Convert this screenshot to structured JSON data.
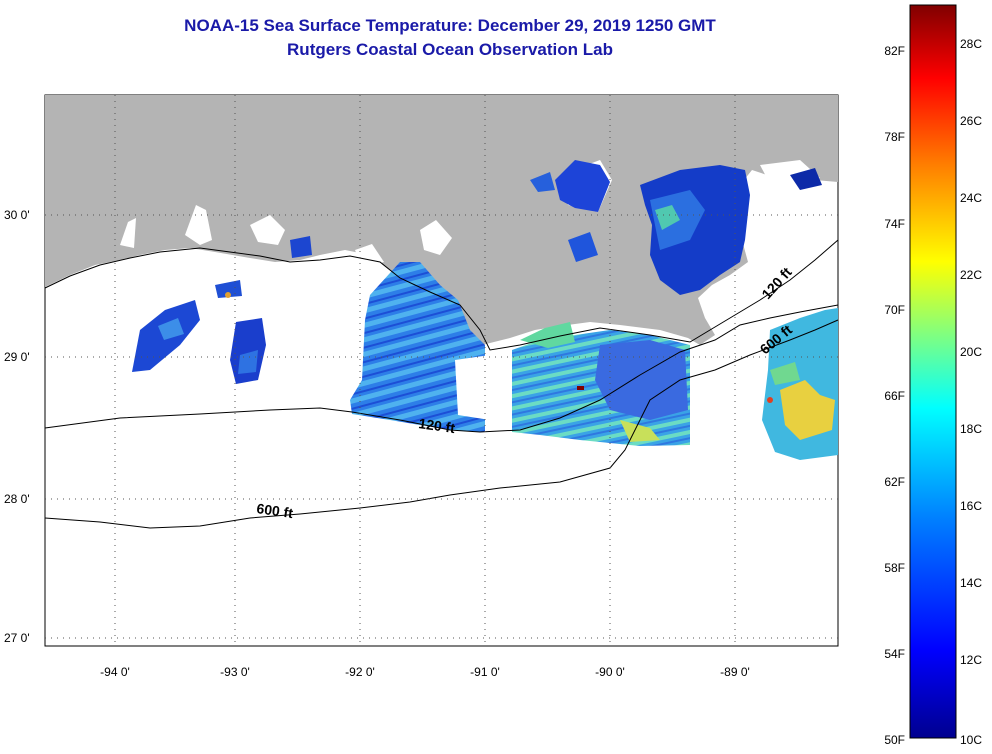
{
  "title": "NOAA-15 Sea Surface Temperature:  December 29, 2019 1250 GMT",
  "subtitle": "Rutgers Coastal Ocean Observation Lab",
  "map": {
    "lat_labels": [
      "30 0'",
      "29 0'",
      "28 0'",
      "27 0'"
    ],
    "lon_labels": [
      "-94 0'",
      "-93 0'",
      "-92 0'",
      "-91 0'",
      "-90 0'",
      "-89 0'"
    ],
    "isobath_labels": [
      "120 ft",
      "120 ft",
      "600 ft",
      "600 ft"
    ],
    "colors": {
      "land": "#b4b4b4",
      "ocean_nodata": "#ffffff",
      "grid": "#555555"
    }
  },
  "colorbar": {
    "fahrenheit_labels": [
      "82F",
      "78F",
      "74F",
      "70F",
      "66F",
      "62F",
      "58F",
      "54F",
      "50F"
    ],
    "celsius_labels": [
      "28C",
      "26C",
      "24C",
      "22C",
      "20C",
      "18C",
      "16C",
      "14C",
      "12C",
      "10C"
    ],
    "range_c": [
      10,
      29.5
    ],
    "stops": [
      "#00008f",
      "#0000ff",
      "#0080ff",
      "#00ffff",
      "#80ff80",
      "#ffff00",
      "#ff8000",
      "#ff0000",
      "#800000"
    ]
  }
}
